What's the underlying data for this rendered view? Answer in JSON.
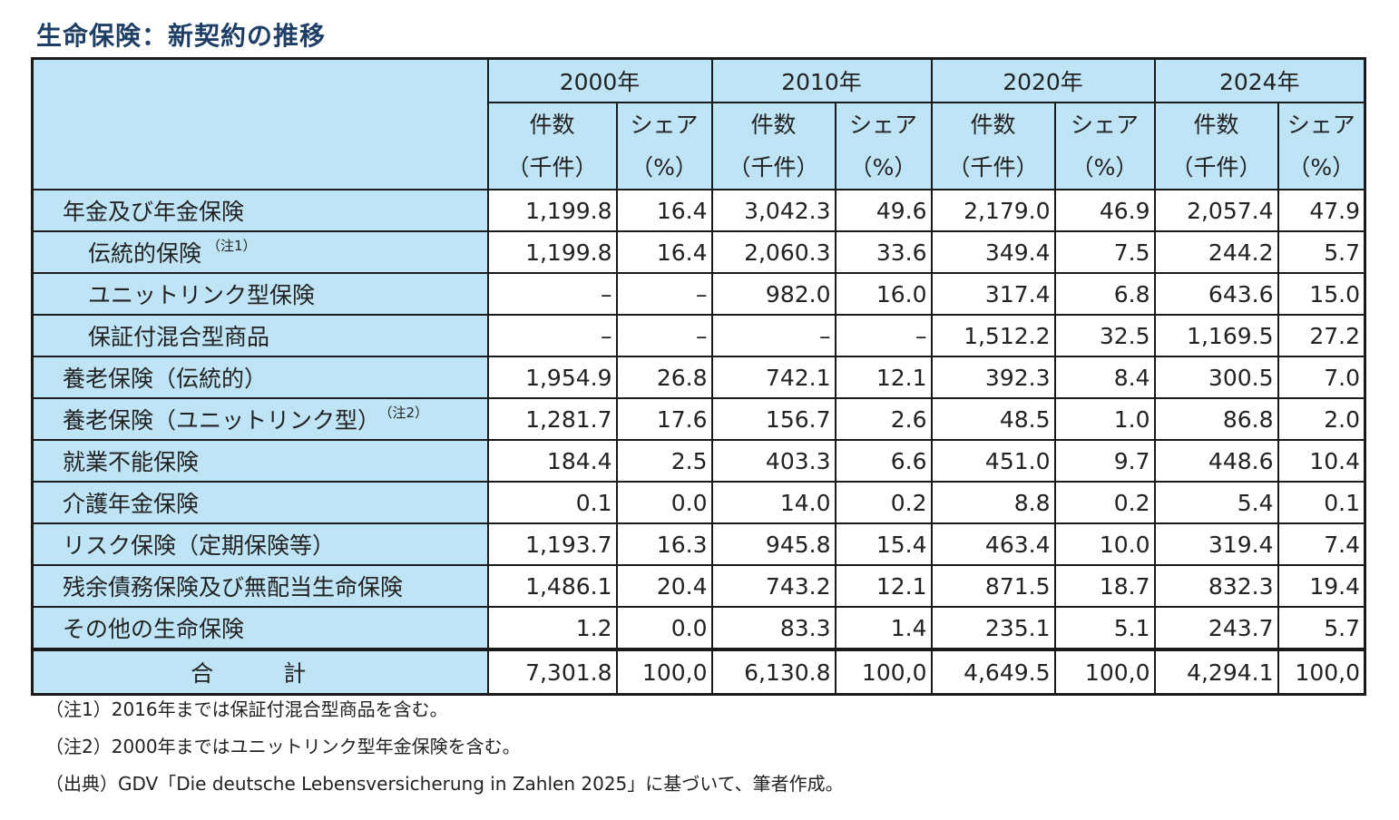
{
  "title": "生命保険：新契約の推移",
  "years": [
    "2000年",
    "2010年",
    "2020年",
    "2024年"
  ],
  "subheaders": {
    "count_line1": "件数",
    "count_line2": "（千件）",
    "share_line1": "シェア",
    "share_line2": "（%）"
  },
  "rows": [
    {
      "label": "年金及び年金保険",
      "note": "",
      "indent": 0,
      "values": [
        "1,199.8",
        "16.4",
        "3,042.3",
        "49.6",
        "2,179.0",
        "46.9",
        "2,057.4",
        "47.9"
      ]
    },
    {
      "label": "伝統的保険",
      "note": "（注1）",
      "indent": 1,
      "values": [
        "1,199.8",
        "16.4",
        "2,060.3",
        "33.6",
        "349.4",
        "7.5",
        "244.2",
        "5.7"
      ]
    },
    {
      "label": "ユニットリンク型保険",
      "note": "",
      "indent": 1,
      "values": [
        "–",
        "–",
        "982.0",
        "16.0",
        "317.4",
        "6.8",
        "643.6",
        "15.0"
      ]
    },
    {
      "label": "保証付混合型商品",
      "note": "",
      "indent": 1,
      "values": [
        "–",
        "–",
        "–",
        "–",
        "1,512.2",
        "32.5",
        "1,169.5",
        "27.2"
      ]
    },
    {
      "label": "養老保険（伝統的）",
      "note": "",
      "indent": 0,
      "values": [
        "1,954.9",
        "26.8",
        "742.1",
        "12.1",
        "392.3",
        "8.4",
        "300.5",
        "7.0"
      ]
    },
    {
      "label": "養老保険（ユニットリンク型）",
      "note": "（注2）",
      "indent": 0,
      "values": [
        "1,281.7",
        "17.6",
        "156.7",
        "2.6",
        "48.5",
        "1.0",
        "86.8",
        "2.0"
      ]
    },
    {
      "label": "就業不能保険",
      "note": "",
      "indent": 0,
      "values": [
        "184.4",
        "2.5",
        "403.3",
        "6.6",
        "451.0",
        "9.7",
        "448.6",
        "10.4"
      ]
    },
    {
      "label": "介護年金保険",
      "note": "",
      "indent": 0,
      "values": [
        "0.1",
        "0.0",
        "14.0",
        "0.2",
        "8.8",
        "0.2",
        "5.4",
        "0.1"
      ]
    },
    {
      "label": "リスク保険（定期保険等）",
      "note": "",
      "indent": 0,
      "values": [
        "1,193.7",
        "16.3",
        "945.8",
        "15.4",
        "463.4",
        "10.0",
        "319.4",
        "7.4"
      ]
    },
    {
      "label": "残余債務保険及び無配当生命保険",
      "note": "",
      "indent": 0,
      "values": [
        "1,486.1",
        "20.4",
        "743.2",
        "12.1",
        "871.5",
        "18.7",
        "832.3",
        "19.4"
      ]
    },
    {
      "label": "その他の生命保険",
      "note": "",
      "indent": 0,
      "values": [
        "1.2",
        "0.0",
        "83.3",
        "1.4",
        "235.1",
        "5.1",
        "243.7",
        "5.7"
      ]
    }
  ],
  "total": {
    "label": "合　計",
    "values": [
      "7,301.8",
      "100,0",
      "6,130.8",
      "100,0",
      "4,649.5",
      "100,0",
      "4,294.1",
      "100,0"
    ]
  },
  "notes": [
    "（注1）2016年までは保証付混合型商品を含む。",
    "（注2）2000年まではユニットリンク型年金保険を含む。",
    "（出典）GDV「Die deutsche Lebensversicherung in Zahlen 2025」に基づいて、筆者作成。"
  ],
  "colors": {
    "header_bg": "#bfe4f5",
    "title": "#1f3f66"
  }
}
